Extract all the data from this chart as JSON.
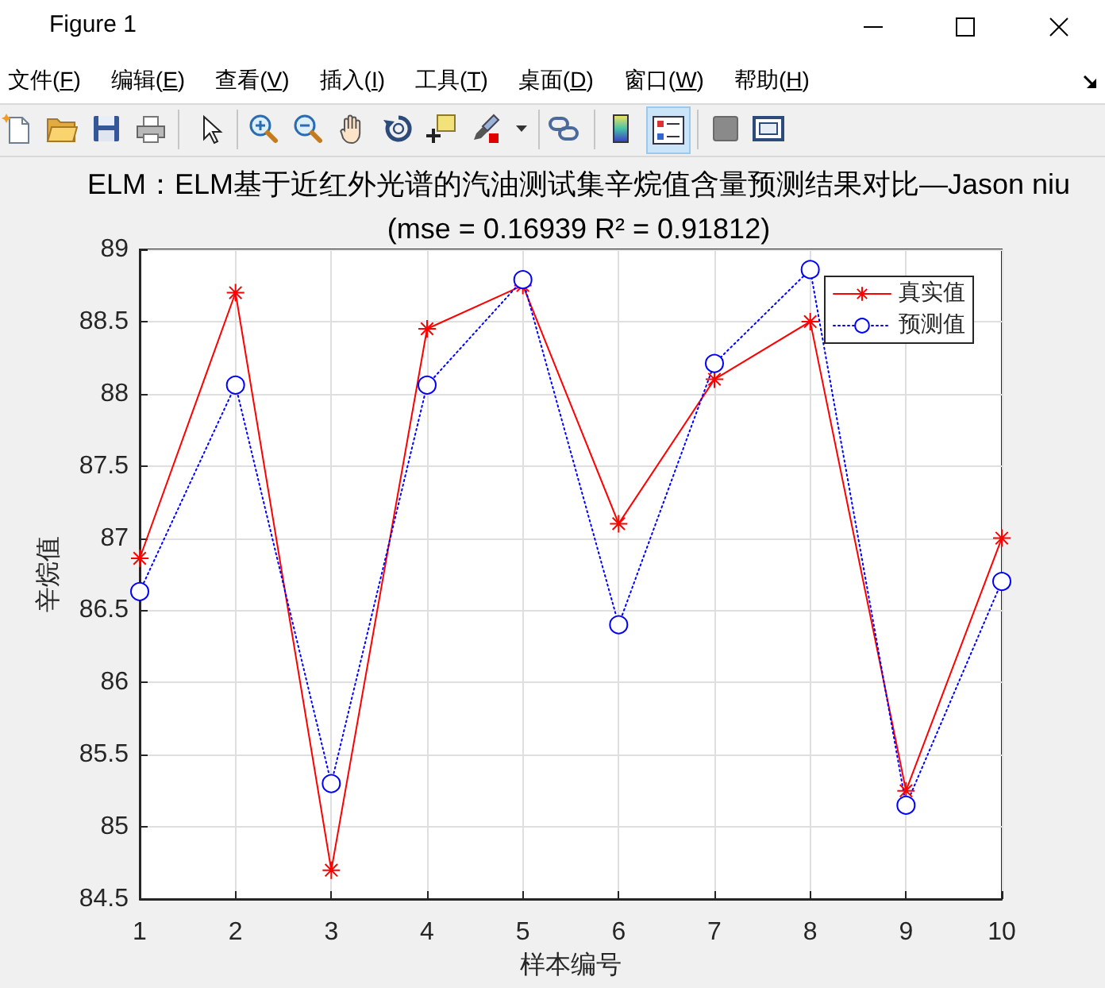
{
  "chart_data": {
    "type": "line",
    "title": "ELM：ELM基于近红外光谱的汽油测试集辛烷值含量预测结果对比—Jason niu",
    "subtitle": "(mse = 0.16939 R² = 0.91812)",
    "xlabel": "样本编号",
    "ylabel": "辛烷值",
    "x": [
      1,
      2,
      3,
      4,
      5,
      6,
      7,
      8,
      9,
      10
    ],
    "series": [
      {
        "name": "真实值",
        "color": "#ff0000",
        "marker": "cross",
        "line_style": "solid",
        "values": [
          86.86,
          88.7,
          84.7,
          88.45,
          88.75,
          87.1,
          88.1,
          88.5,
          85.25,
          87.0
        ]
      },
      {
        "name": "预测值",
        "color": "#0000ff",
        "marker": "circle",
        "line_style": "dotted",
        "values": [
          86.63,
          88.06,
          85.3,
          88.06,
          88.79,
          86.4,
          88.21,
          88.86,
          85.15,
          86.7
        ]
      }
    ],
    "xlim": [
      1,
      10
    ],
    "xticks": [
      1,
      2,
      3,
      4,
      5,
      6,
      7,
      8,
      9,
      10
    ],
    "ylim": [
      84.5,
      89
    ],
    "yticks": [
      84.5,
      85,
      85.5,
      86,
      86.5,
      87,
      87.5,
      88,
      88.5,
      89
    ],
    "grid": true,
    "legend": "top right",
    "annotations": [
      "Figure 1",
      "文件(F)",
      "编辑(E)",
      "查看(V)",
      "插入(I)",
      "工具(T)",
      "桌面(D)",
      "窗口(W)",
      "帮助(H)"
    ]
  }
}
